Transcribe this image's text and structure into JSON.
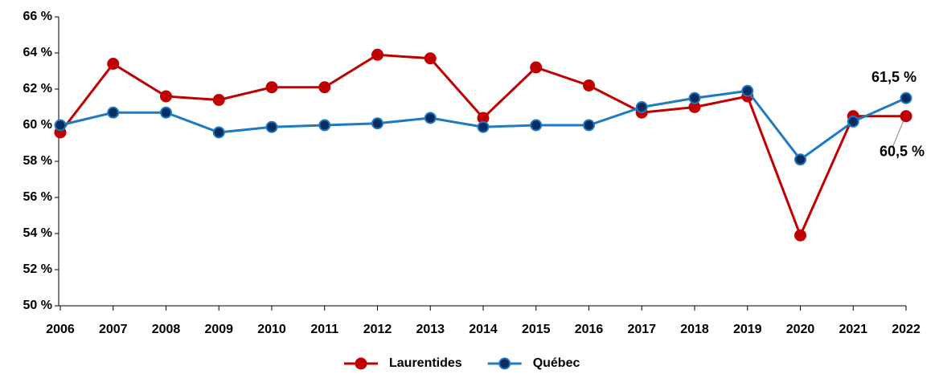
{
  "chart_data": {
    "type": "line",
    "categories": [
      "2006",
      "2007",
      "2008",
      "2009",
      "2010",
      "2011",
      "2012",
      "2013",
      "2014",
      "2015",
      "2016",
      "2017",
      "2018",
      "2019",
      "2020",
      "2021",
      "2022"
    ],
    "series": [
      {
        "name": "Laurentides",
        "color": "#c00000",
        "marker_fill": "#c00000",
        "values": [
          59.6,
          63.4,
          61.6,
          61.4,
          62.1,
          62.1,
          63.9,
          63.7,
          60.4,
          63.2,
          62.2,
          60.7,
          61.0,
          61.6,
          53.9,
          60.5,
          60.5
        ],
        "value_labels": [
          null,
          null,
          null,
          null,
          null,
          null,
          null,
          null,
          null,
          null,
          null,
          null,
          null,
          null,
          null,
          null,
          "60,5 %"
        ]
      },
      {
        "name": "Québec",
        "color": "#1f7ac4",
        "marker_fill": "#0b2c5e",
        "values": [
          60.0,
          60.7,
          60.7,
          59.6,
          59.9,
          60.0,
          60.1,
          60.4,
          59.9,
          60.0,
          60.0,
          61.0,
          61.5,
          61.9,
          58.1,
          60.2,
          61.5
        ],
        "value_labels": [
          null,
          null,
          null,
          null,
          null,
          null,
          null,
          null,
          null,
          null,
          null,
          null,
          null,
          null,
          null,
          null,
          "61,5 %"
        ]
      }
    ],
    "ylim": [
      50,
      66
    ],
    "yticks": [
      {
        "value": 50,
        "label": "50 %"
      },
      {
        "value": 52,
        "label": "52 %"
      },
      {
        "value": 54,
        "label": "54 %"
      },
      {
        "value": 56,
        "label": "56 %"
      },
      {
        "value": 58,
        "label": "58 %"
      },
      {
        "value": 60,
        "label": "60 %"
      },
      {
        "value": 62,
        "label": "62 %"
      },
      {
        "value": 64,
        "label": "64 %"
      },
      {
        "value": 66,
        "label": "66 %"
      }
    ],
    "grid": false,
    "legend": "bottom"
  }
}
